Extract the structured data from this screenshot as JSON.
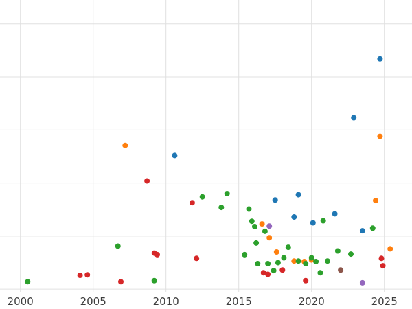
{
  "chart_data": {
    "type": "scatter",
    "title": "",
    "xlabel": "",
    "ylabel": "",
    "x_ticks": [
      2000,
      2005,
      2010,
      2015,
      2020,
      2025
    ],
    "y_gridline_values": [
      0,
      1,
      2,
      3,
      4,
      5
    ],
    "xlim": [
      1998.6,
      2026.9
    ],
    "ylim": [
      -0.05,
      5.45
    ],
    "grid": true,
    "legend": "none",
    "background_color": "#ffffff",
    "gridline_color": "#e0e0e0",
    "tick_label_color": "#3d3d3d",
    "marker_radius": 4,
    "series": [
      {
        "name": "blue",
        "color": "#1f77b4",
        "points": [
          [
            2024.7,
            4.34
          ],
          [
            2022.9,
            3.23
          ],
          [
            2010.6,
            2.52
          ],
          [
            2017.5,
            1.68
          ],
          [
            2019.1,
            1.78
          ],
          [
            2018.8,
            1.36
          ],
          [
            2020.1,
            1.25
          ],
          [
            2021.6,
            1.42
          ],
          [
            2023.5,
            1.1
          ]
        ]
      },
      {
        "name": "orange",
        "color": "#ff7f0e",
        "points": [
          [
            2007.2,
            2.71
          ],
          [
            2024.7,
            2.88
          ],
          [
            2024.4,
            1.67
          ],
          [
            2016.6,
            1.23
          ],
          [
            2017.1,
            0.97
          ],
          [
            2017.6,
            0.7
          ],
          [
            2018.8,
            0.53
          ],
          [
            2019.5,
            0.52
          ],
          [
            2020.0,
            0.55
          ],
          [
            2025.4,
            0.76
          ]
        ]
      },
      {
        "name": "green",
        "color": "#2ca02c",
        "points": [
          [
            2000.5,
            0.14
          ],
          [
            2006.7,
            0.81
          ],
          [
            2009.2,
            0.16
          ],
          [
            2012.5,
            1.74
          ],
          [
            2013.8,
            1.54
          ],
          [
            2014.2,
            1.8
          ],
          [
            2015.4,
            0.65
          ],
          [
            2015.7,
            1.51
          ],
          [
            2015.9,
            1.28
          ],
          [
            2016.1,
            1.18
          ],
          [
            2016.2,
            0.87
          ],
          [
            2016.3,
            0.48
          ],
          [
            2016.8,
            1.09
          ],
          [
            2017.0,
            0.48
          ],
          [
            2017.4,
            0.35
          ],
          [
            2017.7,
            0.5
          ],
          [
            2018.1,
            0.59
          ],
          [
            2018.4,
            0.79
          ],
          [
            2019.1,
            0.53
          ],
          [
            2019.6,
            0.48
          ],
          [
            2020.0,
            0.59
          ],
          [
            2020.3,
            0.52
          ],
          [
            2020.6,
            0.31
          ],
          [
            2020.8,
            1.29
          ],
          [
            2021.1,
            0.53
          ],
          [
            2021.8,
            0.72
          ],
          [
            2022.7,
            0.66
          ],
          [
            2024.2,
            1.15
          ]
        ]
      },
      {
        "name": "red",
        "color": "#d62728",
        "points": [
          [
            2008.7,
            2.04
          ],
          [
            2011.8,
            1.63
          ],
          [
            2004.1,
            0.26
          ],
          [
            2004.6,
            0.27
          ],
          [
            2006.9,
            0.14
          ],
          [
            2009.2,
            0.68
          ],
          [
            2009.4,
            0.65
          ],
          [
            2012.1,
            0.58
          ],
          [
            2016.7,
            0.31
          ],
          [
            2017.0,
            0.28
          ],
          [
            2018.0,
            0.36
          ],
          [
            2019.6,
            0.16
          ],
          [
            2024.8,
            0.58
          ],
          [
            2024.9,
            0.44
          ]
        ]
      },
      {
        "name": "purple",
        "color": "#9467bd",
        "points": [
          [
            2017.1,
            1.19
          ],
          [
            2023.5,
            0.12
          ]
        ]
      },
      {
        "name": "brown",
        "color": "#8c564b",
        "points": [
          [
            2022.0,
            0.36
          ]
        ]
      }
    ]
  }
}
